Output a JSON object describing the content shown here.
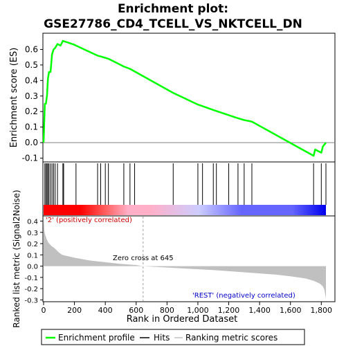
{
  "chart_data": {
    "type": "line",
    "title": "Enrichment plot:",
    "subtitle": "GSE27786_CD4_TCELL_VS_NKTCELL_DN",
    "es_panel": {
      "ylabel": "Enrichment score (ES)",
      "ylim": [
        -0.12,
        0.7
      ],
      "yticks": [
        -0.1,
        0.0,
        0.1,
        0.2,
        0.3,
        0.4,
        0.5,
        0.6
      ],
      "ytick_labels": [
        "-0.1",
        "0.0",
        "0.1",
        "0.2",
        "0.3",
        "0.4",
        "0.5",
        "0.6"
      ],
      "grid": false
    },
    "xlim": [
      0,
      1930
    ],
    "xticks": [
      0,
      200,
      400,
      600,
      800,
      1000,
      1200,
      1400,
      1600,
      1800
    ],
    "xtick_labels": [
      "0",
      "200",
      "400",
      "600",
      "800",
      "1,000",
      "1,200",
      "1,400",
      "1,600",
      "1,800"
    ],
    "xlabel": "Rank in Ordered Dataset",
    "series": [
      {
        "name": "Enrichment profile",
        "color": "#00ff00",
        "x": [
          0,
          8,
          15,
          22,
          28,
          35,
          45,
          55,
          65,
          75,
          90,
          110,
          125,
          140,
          200,
          210,
          350,
          370,
          420,
          520,
          560,
          840,
          1000,
          1100,
          1250,
          1300,
          1350,
          1750,
          1760,
          1800,
          1810,
          1830
        ],
        "y": [
          0.0,
          0.25,
          0.25,
          0.3,
          0.41,
          0.455,
          0.455,
          0.57,
          0.6,
          0.61,
          0.635,
          0.625,
          0.655,
          0.65,
          0.63,
          0.625,
          0.56,
          0.555,
          0.54,
          0.49,
          0.475,
          0.32,
          0.245,
          0.21,
          0.16,
          0.145,
          0.135,
          -0.085,
          -0.045,
          -0.065,
          -0.025,
          0.0
        ]
      }
    ],
    "hits": {
      "name": "Hits",
      "color": "#000000",
      "positions": [
        8,
        15,
        22,
        28,
        35,
        45,
        55,
        65,
        75,
        90,
        125,
        130,
        210,
        350,
        370,
        400,
        420,
        520,
        560,
        590,
        840,
        1000,
        1030,
        1100,
        1120,
        1200,
        1260,
        1300,
        1350,
        1750,
        1800,
        1830
      ]
    },
    "heatmap": {
      "colors": [
        "#ff0000",
        "#ff6060",
        "#ffb0c8",
        "#ccccff",
        "#6666ff",
        "#0000ee"
      ],
      "zero_cross_rank": 645
    },
    "metric_panel": {
      "ylabel": "Ranked list metric (Signal2Noise)",
      "ylim": [
        -0.31,
        0.44
      ],
      "yticks": [
        -0.3,
        -0.2,
        -0.1,
        0.0,
        0.1,
        0.2,
        0.3,
        0.4
      ],
      "ytick_labels": [
        "-0.3",
        "-0.2",
        "-0.1",
        "0.0",
        "0.1",
        "0.2",
        "0.3",
        "0.4"
      ],
      "fill_color": "#c0c0c0",
      "x": [
        0,
        5,
        10,
        20,
        30,
        50,
        70,
        100,
        120,
        150,
        200,
        300,
        400,
        500,
        600,
        645,
        700,
        900,
        1100,
        1300,
        1500,
        1600,
        1700,
        1750,
        1790,
        1810,
        1820,
        1825,
        1830
      ],
      "y": [
        0.44,
        0.31,
        0.28,
        0.24,
        0.21,
        0.18,
        0.16,
        0.12,
        0.1,
        0.09,
        0.075,
        0.05,
        0.035,
        0.02,
        0.01,
        0.0,
        -0.005,
        -0.02,
        -0.035,
        -0.055,
        -0.075,
        -0.09,
        -0.11,
        -0.13,
        -0.155,
        -0.18,
        -0.21,
        -0.25,
        -0.29
      ],
      "annotations": {
        "positive": "'2' (positively correlated)",
        "negative": "'REST' (negatively correlated)",
        "zero_cross": "Zero cross at 645"
      },
      "annotation_colors": {
        "positive": "#cc0000",
        "negative": "#0000cc"
      }
    },
    "legend": {
      "placement": "bottom",
      "items": [
        {
          "label": "Enrichment profile",
          "color": "#00ff00"
        },
        {
          "label": "Hits",
          "color": "#000000"
        },
        {
          "label": "Ranking metric scores",
          "color": "#c0c0c0"
        }
      ]
    }
  }
}
